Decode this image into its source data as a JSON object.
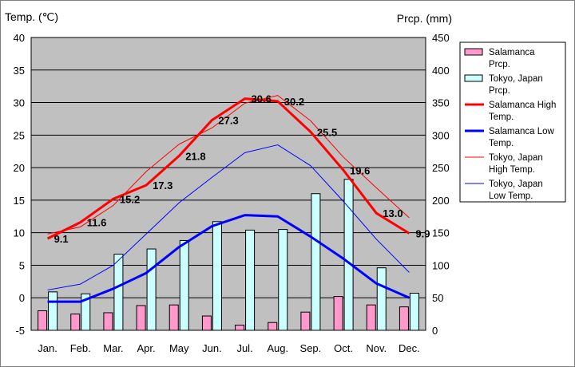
{
  "chart_data": {
    "type": "bar+line",
    "title": "",
    "ylabel_left": "Temp. (℃)",
    "ylabel_right": "Prcp. (mm)",
    "ylim_left": [
      -5,
      40
    ],
    "yticks_left": [
      "40",
      "35",
      "30",
      "25",
      "20",
      "15",
      "10",
      "5",
      "0",
      "-5"
    ],
    "ylim_right": [
      0,
      450
    ],
    "yticks_right": [
      "450",
      "400",
      "350",
      "300",
      "250",
      "200",
      "150",
      "100",
      "50",
      "0"
    ],
    "categories": [
      "Jan.",
      "Feb.",
      "Mar.",
      "Apr.",
      "May",
      "Jun.",
      "Jul.",
      "Aug.",
      "Sep.",
      "Oct.",
      "Nov.",
      "Dec."
    ],
    "grid": true,
    "legend_position": "right",
    "colors": {
      "plot_bg": "#c0c0c0",
      "salamanca_prcp": "#ff99cc",
      "tokyo_prcp": "#ccffff",
      "salamanca_high": "#ff0000",
      "salamanca_low": "#0000ff",
      "tokyo_high": "#ff0000",
      "tokyo_low": "#0000ff"
    },
    "series": [
      {
        "name": "Salamanca Prcp.",
        "axis": "right",
        "kind": "bar",
        "values": [
          30,
          25,
          27,
          38,
          39,
          22,
          8,
          12,
          28,
          52,
          39,
          36
        ]
      },
      {
        "name": "Tokyo, Japan Prcp.",
        "axis": "right",
        "kind": "bar",
        "values": [
          59,
          56,
          117,
          125,
          138,
          167,
          154,
          155,
          210,
          232,
          96,
          57
        ]
      },
      {
        "name": "Salamanca High Temp.",
        "axis": "left",
        "kind": "line",
        "values": [
          9.1,
          11.6,
          15.2,
          17.3,
          21.8,
          27.3,
          30.6,
          30.2,
          25.5,
          19.6,
          13.0,
          9.9
        ]
      },
      {
        "name": "Salamanca Low Temp.",
        "axis": "left",
        "kind": "line",
        "values": [
          -0.6,
          -0.6,
          1.4,
          3.8,
          7.8,
          11.0,
          12.7,
          12.5,
          9.4,
          6.0,
          2.2,
          0.0
        ]
      },
      {
        "name": "Tokyo, Japan High Temp.",
        "axis": "left",
        "kind": "line",
        "values": [
          9.8,
          10.9,
          14.2,
          19.4,
          23.6,
          26.1,
          29.9,
          31.1,
          27.2,
          21.6,
          16.9,
          12.3
        ]
      },
      {
        "name": "Tokyo, Japan Low Temp.",
        "axis": "left",
        "kind": "line",
        "values": [
          1.2,
          2.1,
          5.0,
          9.8,
          14.6,
          18.5,
          22.3,
          23.5,
          20.3,
          14.8,
          9.0,
          3.9
        ]
      }
    ],
    "data_labels": [
      "9.1",
      "11.6",
      "15.2",
      "17.3",
      "21.8",
      "27.3",
      "30.6",
      "30.2",
      "25.5",
      "19.6",
      "13.0",
      "9.9"
    ],
    "legend": [
      {
        "line1": "Salamanca",
        "line2": "Prcp."
      },
      {
        "line1": "Tokyo, Japan",
        "line2": "Prcp."
      },
      {
        "line1": "Salamanca High",
        "line2": "Temp."
      },
      {
        "line1": "Salamanca Low",
        "line2": "Temp."
      },
      {
        "line1": "Tokyo, Japan",
        "line2": "High Temp."
      },
      {
        "line1": "Tokyo, Japan",
        "line2": "Low Temp."
      }
    ]
  }
}
